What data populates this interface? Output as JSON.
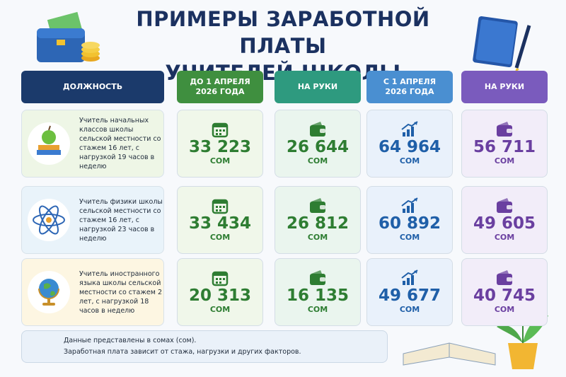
{
  "header": {
    "title_lines": [
      "ПРИМЕРЫ ЗАРАБОТНОЙ ПЛАТЫ",
      "УЧИТЕЛЕЙ ШКОЛЫ"
    ]
  },
  "table": {
    "columns": [
      "ДОЛЖНОСТЬ",
      "ДО 1 АПРЕЛЯ\n2026 ГОДА",
      "НА РУКИ",
      "С 1 АПРЕЛЯ\n2026 ГОДА",
      "НА РУКИ"
    ],
    "unit": "СОМ",
    "rows": [
      {
        "position": "Учитель начальных классов школы сельской местности со стажем 16 лет, с нагрузкой 19 часов в неделю",
        "values": [
          "33 223",
          "26 644",
          "64 964",
          "56 711"
        ]
      },
      {
        "position": "Учитель физики школы сельской местности со стажем 16 лет, с нагрузкой 23 часов в неделю",
        "values": [
          "33 434",
          "26 812",
          "60 892",
          "49 605"
        ]
      },
      {
        "position": "Учитель иностранного языка школы сельской местности со стажем 2 лет, с нагрузкой 18 часов в неделю",
        "values": [
          "20 313",
          "16 135",
          "49 677",
          "40 745"
        ]
      }
    ]
  },
  "footnote": [
    "Данные представлены в сомах (сом).",
    "Заработная плата зависит от стажа, нагрузки и других факторов."
  ]
}
